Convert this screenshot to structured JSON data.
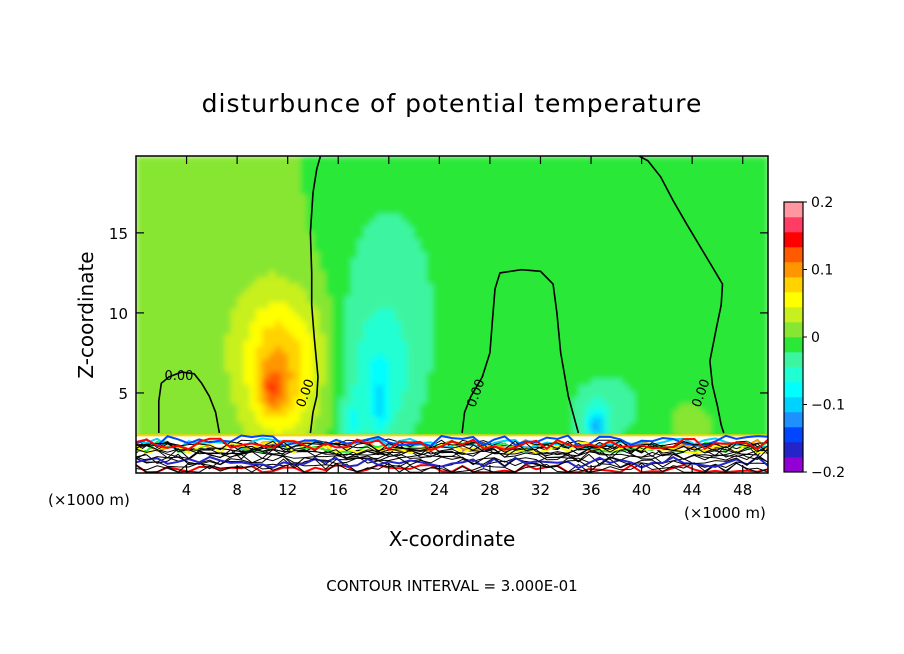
{
  "chart_data": {
    "type": "heatmap",
    "title": "disturbunce of potential temperature",
    "xlabel": "X-coordinate",
    "ylabel": "Z-coordinate",
    "x_unit": "(×1000 m)",
    "y_unit": "(×1000 m)",
    "xlim": [
      0,
      50
    ],
    "ylim": [
      0,
      19.8
    ],
    "x_ticks": [
      4,
      8,
      12,
      16,
      20,
      24,
      28,
      32,
      36,
      40,
      44,
      48
    ],
    "y_ticks": [
      5,
      10,
      15
    ],
    "colorbar": {
      "range": [
        -0.2,
        0.2
      ],
      "tick_values": [
        0.2,
        0.1,
        0,
        -0.1,
        -0.2
      ],
      "tick_labels": [
        "0.2",
        "0.1",
        "0",
        "−0.1",
        "−0.2"
      ],
      "colors": [
        "#9400d3",
        "#2424c8",
        "#0046ff",
        "#1e90ff",
        "#00d2ff",
        "#00ffff",
        "#20ffd2",
        "#3cf5a0",
        "#29e837",
        "#87e632",
        "#c8f01e",
        "#ffff00",
        "#ffd200",
        "#ff9600",
        "#ff5a00",
        "#ff0000",
        "#ff3c64",
        "#ff96a0"
      ]
    },
    "contour_interval": "CONTOUR INTERVAL = 3.000E-01",
    "contour_labels": [
      {
        "text": "0.00",
        "x": 3.4,
        "z": 5.8
      },
      {
        "text": "0.00",
        "x": 13.7,
        "z": 4.9
      },
      {
        "text": "0.00",
        "x": 27.2,
        "z": 4.9
      },
      {
        "text": "0.00",
        "x": 45.0,
        "z": 4.9
      }
    ],
    "anomalies": [
      {
        "x": 11.4,
        "z": 6.5,
        "sx": 2.8,
        "sz": 4.5,
        "v": 0.09
      },
      {
        "x": 10.8,
        "z": 5.2,
        "sx": 1.0,
        "sz": 1.3,
        "v": 0.05
      },
      {
        "x": 6.5,
        "z": 10.0,
        "sx": 6.0,
        "sz": 8.0,
        "v": 0.015
      },
      {
        "x": 14.5,
        "z": 8.0,
        "sx": 1.4,
        "sz": 4.0,
        "v": 0.015
      },
      {
        "x": 20.0,
        "z": 9.5,
        "sx": 4.5,
        "sz": 9.0,
        "v": -0.04
      },
      {
        "x": 19.0,
        "z": 5.5,
        "sx": 2.3,
        "sz": 3.5,
        "v": -0.04
      },
      {
        "x": 17.0,
        "z": 3.0,
        "sx": 0.8,
        "sz": 1.3,
        "v": -0.05
      },
      {
        "x": 19.3,
        "z": 4.0,
        "sx": 0.6,
        "sz": 1.8,
        "v": -0.04
      },
      {
        "x": 36.5,
        "z": 3.6,
        "sx": 2.5,
        "sz": 2.5,
        "v": -0.04
      },
      {
        "x": 36.4,
        "z": 3.0,
        "sx": 0.7,
        "sz": 1.0,
        "v": -0.08
      },
      {
        "x": 40.0,
        "z": 5.0,
        "sx": 4.0,
        "sz": 3.0,
        "v": -0.015
      },
      {
        "x": 43.5,
        "z": 3.3,
        "sx": 1.2,
        "sz": 1.0,
        "v": 0.02
      }
    ],
    "zero_contours": [
      [
        [
          1.8,
          2.5
        ],
        [
          1.8,
          4.5
        ],
        [
          2.0,
          5.6
        ],
        [
          2.6,
          6.0
        ],
        [
          3.6,
          6.3
        ],
        [
          4.6,
          6.2
        ],
        [
          5.2,
          5.6
        ],
        [
          5.8,
          4.8
        ],
        [
          6.3,
          3.8
        ],
        [
          6.6,
          2.5
        ]
      ],
      [
        [
          13.8,
          2.5
        ],
        [
          14.0,
          3.8
        ],
        [
          14.3,
          4.8
        ],
        [
          14.4,
          6.0
        ],
        [
          14.1,
          8.5
        ],
        [
          13.9,
          10.5
        ],
        [
          13.9,
          12.5
        ],
        [
          13.8,
          15.0
        ],
        [
          14.0,
          17.5
        ],
        [
          14.3,
          19.0
        ],
        [
          14.6,
          19.8
        ]
      ],
      [
        [
          25.8,
          2.5
        ],
        [
          26.0,
          3.8
        ],
        [
          26.5,
          4.8
        ],
        [
          27.4,
          6.0
        ],
        [
          28.0,
          7.5
        ],
        [
          28.2,
          9.5
        ],
        [
          28.4,
          11.5
        ],
        [
          28.8,
          12.5
        ],
        [
          30.5,
          12.7
        ],
        [
          32.0,
          12.6
        ],
        [
          33.0,
          11.8
        ],
        [
          33.3,
          10.0
        ],
        [
          33.6,
          7.5
        ],
        [
          34.2,
          4.8
        ],
        [
          35.0,
          2.5
        ]
      ],
      [
        [
          39.8,
          19.8
        ],
        [
          40.5,
          19.5
        ],
        [
          41.5,
          18.5
        ],
        [
          42.5,
          17.0
        ],
        [
          43.6,
          15.5
        ],
        [
          45.5,
          13.0
        ],
        [
          46.4,
          11.8
        ],
        [
          46.3,
          10.5
        ],
        [
          45.9,
          9.0
        ],
        [
          45.4,
          7.0
        ],
        [
          45.6,
          5.5
        ],
        [
          46.0,
          4.2
        ],
        [
          46.3,
          3.0
        ],
        [
          46.5,
          2.5
        ]
      ]
    ]
  }
}
